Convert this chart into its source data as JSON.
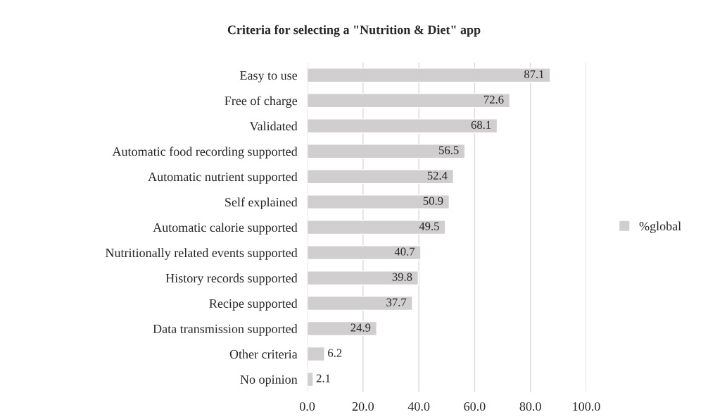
{
  "chart_data": {
    "type": "bar",
    "orientation": "horizontal",
    "title": "Criteria for selecting a \"Nutrition & Diet\" app",
    "categories": [
      "Easy to use",
      "Free of charge",
      "Validated",
      "Automatic food recording supported",
      "Automatic nutrient supported",
      "Self explained",
      "Automatic calorie supported",
      "Nutritionally related events supported",
      "History records supported",
      "Recipe supported",
      "Data transmission supported",
      "Other criteria",
      "No opinion"
    ],
    "series": [
      {
        "name": "%global",
        "color": "#d0cece",
        "values": [
          87.1,
          72.6,
          68.1,
          56.5,
          52.4,
          50.9,
          49.5,
          40.7,
          39.8,
          37.7,
          24.9,
          6.2,
          2.1
        ]
      }
    ],
    "xlim": [
      0,
      100
    ],
    "xticks": [
      {
        "value": 0,
        "label": "0.0"
      },
      {
        "value": 20,
        "label": "20.0"
      },
      {
        "value": 40,
        "label": "40.0"
      },
      {
        "value": 60,
        "label": "60.0"
      },
      {
        "value": 80,
        "label": "80.0"
      },
      {
        "value": 100,
        "label": "100.0"
      }
    ],
    "grid": "x",
    "legend": "right",
    "data_labels": true
  }
}
